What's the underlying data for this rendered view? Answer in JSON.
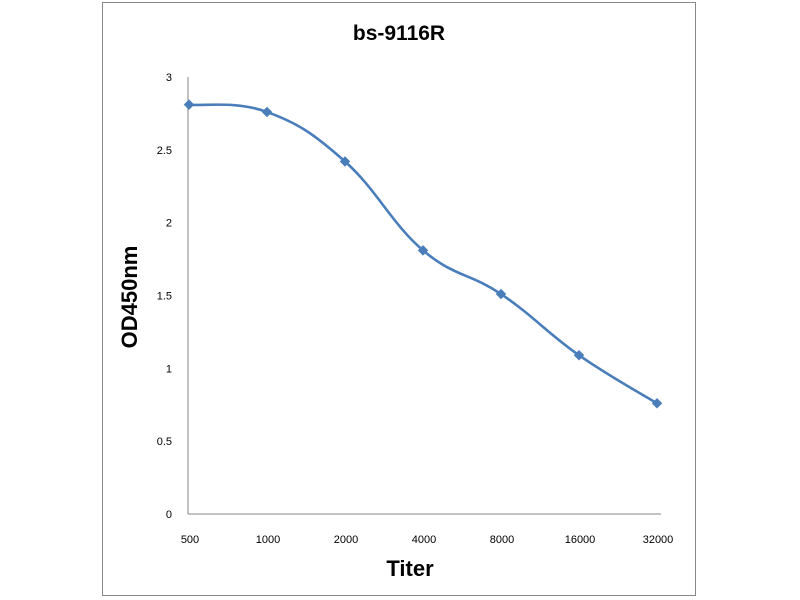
{
  "chart_data": {
    "type": "line",
    "title": "bs-9116R",
    "xlabel": "Titer",
    "ylabel": "OD450nm",
    "categories": [
      "500",
      "1000",
      "2000",
      "4000",
      "8000",
      "16000",
      "32000"
    ],
    "series": [
      {
        "values": [
          2.81,
          2.76,
          2.42,
          1.81,
          1.51,
          1.09,
          0.76
        ],
        "color": "#4a7ebb",
        "marker": "diamond"
      }
    ],
    "ylim": [
      0,
      3
    ],
    "yticks": [
      "0",
      "0.5",
      "1",
      "1.5",
      "2",
      "2.5",
      "3"
    ],
    "grid": false,
    "legend": "none",
    "smooth": true
  }
}
